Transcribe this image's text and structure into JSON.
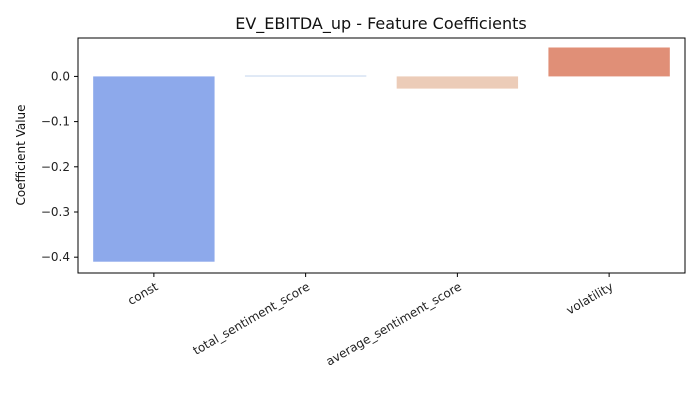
{
  "chart_data": {
    "type": "bar",
    "title": "EV_EBITDA_up - Feature Coefficients",
    "xlabel": "",
    "ylabel": "Coefficient Value",
    "categories": [
      "const",
      "total_sentiment_score",
      "average_sentiment_score",
      "volatility"
    ],
    "values": [
      -0.41,
      0.002,
      -0.027,
      0.064
    ],
    "colors": [
      "#8da9eb",
      "#c3d4ec",
      "#ecccb8",
      "#e08f77"
    ],
    "ylim": [
      -0.435,
      0.085
    ],
    "yticks": [
      0.0,
      -0.1,
      -0.2,
      -0.3,
      -0.4
    ],
    "ytick_labels": [
      "0.0",
      "−0.1",
      "−0.2",
      "−0.3",
      "−0.4"
    ],
    "x_tick_rotation_deg": -30,
    "grid": false,
    "legend": "none"
  }
}
